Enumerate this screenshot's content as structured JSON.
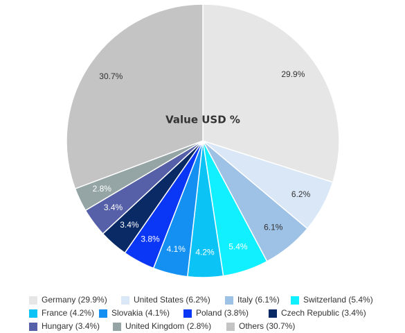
{
  "chart_data": {
    "type": "pie",
    "title": "Value USD %",
    "start_angle": "top (12 o'clock), clockwise",
    "legend_position": "bottom",
    "slices": [
      {
        "name": "Germany",
        "value": 29.9,
        "label": "29.9%",
        "legend": "Germany (29.9%)",
        "color": "#e6e6e6",
        "label_color": "#333333"
      },
      {
        "name": "United States",
        "value": 6.2,
        "label": "6.2%",
        "legend": "United States (6.2%)",
        "color": "#d9e7f7",
        "label_color": "#333333"
      },
      {
        "name": "Italy",
        "value": 6.1,
        "label": "6.1%",
        "legend": "Italy (6.1%)",
        "color": "#9ec1e6",
        "label_color": "#333333"
      },
      {
        "name": "Switzerland",
        "value": 5.4,
        "label": "5.4%",
        "legend": "Switzerland (5.4%)",
        "color": "#11f0ff",
        "label_color": "#ffffff"
      },
      {
        "name": "France",
        "value": 4.2,
        "label": "4.2%",
        "legend": "France (4.2%)",
        "color": "#0bc4f5",
        "label_color": "#ffffff"
      },
      {
        "name": "Slovakia",
        "value": 4.1,
        "label": "4.1%",
        "legend": "Slovakia (4.1%)",
        "color": "#1490f2",
        "label_color": "#ffffff"
      },
      {
        "name": "Poland",
        "value": 3.8,
        "label": "3.8%",
        "legend": "Poland (3.8%)",
        "color": "#0a36f5",
        "label_color": "#ffffff"
      },
      {
        "name": "Czech Republic",
        "value": 3.4,
        "label": "3.4%",
        "legend": "Czech Republic (3.4%)",
        "color": "#0a2a66",
        "label_color": "#ffffff"
      },
      {
        "name": "Hungary",
        "value": 3.4,
        "label": "3.4%",
        "legend": "Hungary (3.4%)",
        "color": "#5660a8",
        "label_color": "#ffffff"
      },
      {
        "name": "United Kingdom",
        "value": 2.8,
        "label": "2.8%",
        "legend": "United Kingdom (2.8%)",
        "color": "#95a5a6",
        "label_color": "#ffffff"
      },
      {
        "name": "Others",
        "value": 30.7,
        "label": "30.7%",
        "legend": "Others (30.7%)",
        "color": "#c4c4c4",
        "label_color": "#333333"
      }
    ]
  }
}
